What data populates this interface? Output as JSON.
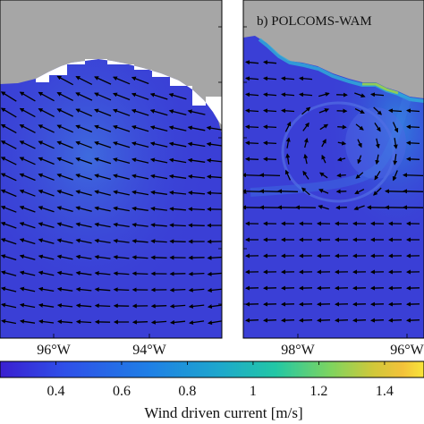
{
  "chart_data": {
    "type": "heatmap",
    "colors": {
      "land": "#a6a6a6",
      "field_base": "#3a3fd6",
      "colormap": [
        "#3a1fd0",
        "#2f4fe8",
        "#1f7fe6",
        "#1ea8cc",
        "#22c7a5",
        "#7ed45f",
        "#d0c83a",
        "#f3c23a",
        "#f8e53a"
      ]
    },
    "panels": [
      {
        "id": "a",
        "title": "",
        "x_ticks": [
          "96°W",
          "94°W"
        ]
      },
      {
        "id": "b",
        "title": "b) POLCOMS-WAM",
        "x_ticks": [
          "98°W",
          "96°W"
        ]
      }
    ],
    "colorbar": {
      "label": "Wind driven current [m/s]",
      "ticks": [
        "0.4",
        "0.6",
        "0.8",
        "1",
        "1.2",
        "1.4"
      ],
      "tick_values": [
        0.4,
        0.6,
        0.8,
        1.0,
        1.2,
        1.4
      ],
      "range": [
        0.23,
        1.52
      ]
    }
  }
}
